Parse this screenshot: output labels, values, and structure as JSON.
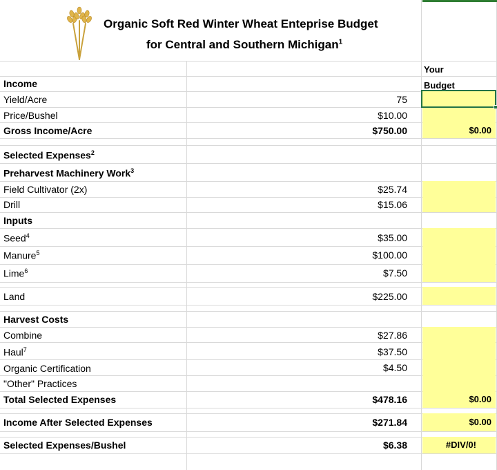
{
  "title": {
    "line1": "Organic Soft Red Winter Wheat Enteprise Budget",
    "line2": "for Central and Southern Michigan",
    "line2_footnote": "1"
  },
  "your_budget": {
    "line1": "Your",
    "line2": "Budget"
  },
  "rows": {
    "income": {
      "label": "Income"
    },
    "yield": {
      "label": "Yield/Acre",
      "value": "75"
    },
    "price": {
      "label": "Price/Bushel",
      "value": "$10.00"
    },
    "gross_income": {
      "label": "Gross Income/Acre",
      "value": "$750.00",
      "budget": "$0.00"
    },
    "selected_expenses": {
      "label": "Selected Expenses",
      "footnote": "2"
    },
    "preharvest": {
      "label": "Preharvest Machinery Work",
      "footnote": "3"
    },
    "field_cultivator": {
      "label": "Field Cultivator (2x)",
      "value": "$25.74"
    },
    "drill": {
      "label": "Drill",
      "value": "$15.06"
    },
    "inputs": {
      "label": "Inputs"
    },
    "seed": {
      "label": "Seed",
      "footnote": "4",
      "value": "$35.00"
    },
    "manure": {
      "label": "Manure",
      "footnote": "5",
      "value": "$100.00"
    },
    "lime": {
      "label": "Lime",
      "footnote": "6",
      "value": "$7.50"
    },
    "land": {
      "label": "Land",
      "value": "$225.00"
    },
    "harvest_costs": {
      "label": "Harvest Costs"
    },
    "combine": {
      "label": "Combine",
      "value": "$27.86"
    },
    "haul": {
      "label": "Haul",
      "footnote": "7",
      "value": "$37.50"
    },
    "organic_cert": {
      "label": "Organic Certification",
      "value": "$4.50"
    },
    "other_practices": {
      "label": "\"Other\" Practices"
    },
    "total_selected": {
      "label": "Total Selected Expenses",
      "value": "$478.16",
      "budget": "$0.00"
    },
    "income_after": {
      "label": "Income After Selected Expenses",
      "value": "$271.84",
      "budget": "$0.00"
    },
    "per_bushel": {
      "label": "Selected Expenses/Bushel",
      "value": "$6.38",
      "budget": "#DIV/0!"
    }
  },
  "colors": {
    "input_cell": "#ffff99",
    "selection": "#217346",
    "gridline": "#d9d9d9"
  },
  "icons": {
    "logo": "wheat-logo"
  }
}
